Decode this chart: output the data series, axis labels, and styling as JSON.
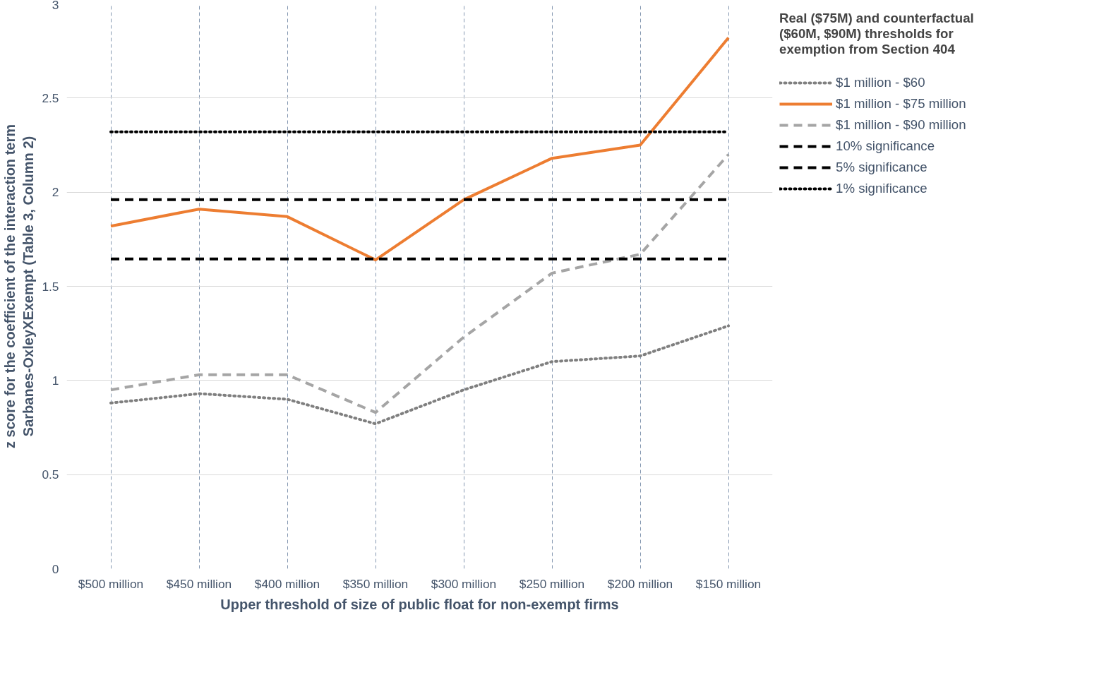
{
  "chart_data": {
    "type": "line",
    "xlabel": "Upper threshold of size of public float for non-exempt firms",
    "ylabel": "z score for the coefficient of the interaction term Sarbanes-OxleyXExempt (Table 3, Column 2)",
    "legend_title": "Real ($75M) and counterfactual ($60M, $90M) thresholds for exemption from Section 404",
    "categories": [
      "$500 million",
      "$450 million",
      "$400 million",
      "$350 million",
      "$300 million",
      "$250 million",
      "$200 million",
      "$150 million"
    ],
    "series": [
      {
        "name": "$1 million - $60",
        "color": "#7f7f7f",
        "line_style": "dotted",
        "values": [
          0.88,
          0.93,
          0.9,
          0.77,
          0.95,
          1.1,
          1.13,
          1.29
        ]
      },
      {
        "name": "$1 million - $75 million",
        "color": "#ed7d31",
        "line_style": "solid",
        "values": [
          1.82,
          1.91,
          1.87,
          1.64,
          1.96,
          2.18,
          2.25,
          2.82
        ]
      },
      {
        "name": "$1 million - $90 million",
        "color": "#a5a5a5",
        "line_style": "dashed",
        "values": [
          0.95,
          1.03,
          1.03,
          0.83,
          1.23,
          1.57,
          1.67,
          2.2
        ]
      },
      {
        "name": "10% significance",
        "color": "#000000",
        "line_style": "dashed",
        "values": [
          1.645,
          1.645,
          1.645,
          1.645,
          1.645,
          1.645,
          1.645,
          1.645
        ]
      },
      {
        "name": "5% significance",
        "color": "#000000",
        "line_style": "dashed",
        "values": [
          1.96,
          1.96,
          1.96,
          1.96,
          1.96,
          1.96,
          1.96,
          1.96
        ]
      },
      {
        "name": "1% significance",
        "color": "#000000",
        "line_style": "dotted",
        "values": [
          2.32,
          2.32,
          2.32,
          2.32,
          2.32,
          2.32,
          2.32,
          2.32
        ]
      }
    ],
    "ylim": [
      0,
      3
    ],
    "yticks": [
      0,
      0.5,
      1,
      1.5,
      2,
      2.5,
      3
    ],
    "grid": true,
    "legend": "right",
    "marker": "none"
  }
}
